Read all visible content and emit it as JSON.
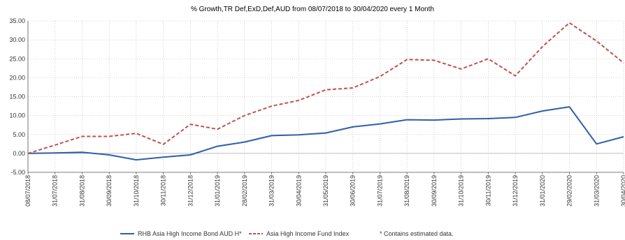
{
  "chart_data": {
    "type": "line",
    "title": "% Growth,TR Def,ExD,Def,AUD from 08/07/2018 to 30/04/2020 every 1 Month",
    "xlabel": "",
    "ylabel": "",
    "ylim": [
      -5,
      35
    ],
    "yticks": [
      "-5.00",
      "0.00",
      "5.00",
      "10.00",
      "15.00",
      "20.00",
      "25.00",
      "30.00",
      "35.00"
    ],
    "categories": [
      "08/07/2018",
      "31/07/2018",
      "31/08/2018",
      "30/09/2018",
      "31/10/2018",
      "30/11/2018",
      "31/12/2018",
      "31/01/2019",
      "28/02/2019",
      "31/03/2019",
      "30/04/2019",
      "31/05/2019",
      "30/06/2019",
      "31/07/2019",
      "31/08/2019",
      "30/09/2019",
      "31/10/2019",
      "30/11/2019",
      "31/12/2019",
      "31/01/2020",
      "29/02/2020",
      "31/03/2020",
      "30/04/2020"
    ],
    "grid": true,
    "legend_position": "bottom",
    "series": [
      {
        "name": "RHB Asia High Income Bond AUD H*",
        "color": "#2e5fa8",
        "style": "solid",
        "values": [
          0.0,
          0.1,
          0.3,
          -0.4,
          -1.7,
          -1.0,
          -0.4,
          1.9,
          3.0,
          4.7,
          4.9,
          5.4,
          7.0,
          7.8,
          8.9,
          8.8,
          9.1,
          9.2,
          9.5,
          11.2,
          12.3,
          2.5,
          4.4
        ]
      },
      {
        "name": "Asia High Income Fund Index",
        "color": "#c0504d",
        "style": "dashed",
        "values": [
          0.0,
          2.2,
          4.5,
          4.5,
          5.3,
          2.4,
          7.7,
          6.4,
          10.0,
          12.5,
          14.0,
          16.8,
          17.3,
          20.3,
          24.8,
          24.6,
          22.3,
          25.0,
          20.5,
          28.2,
          34.5,
          29.7,
          23.9
        ]
      }
    ],
    "footnote": "*  Contains estimated data."
  }
}
